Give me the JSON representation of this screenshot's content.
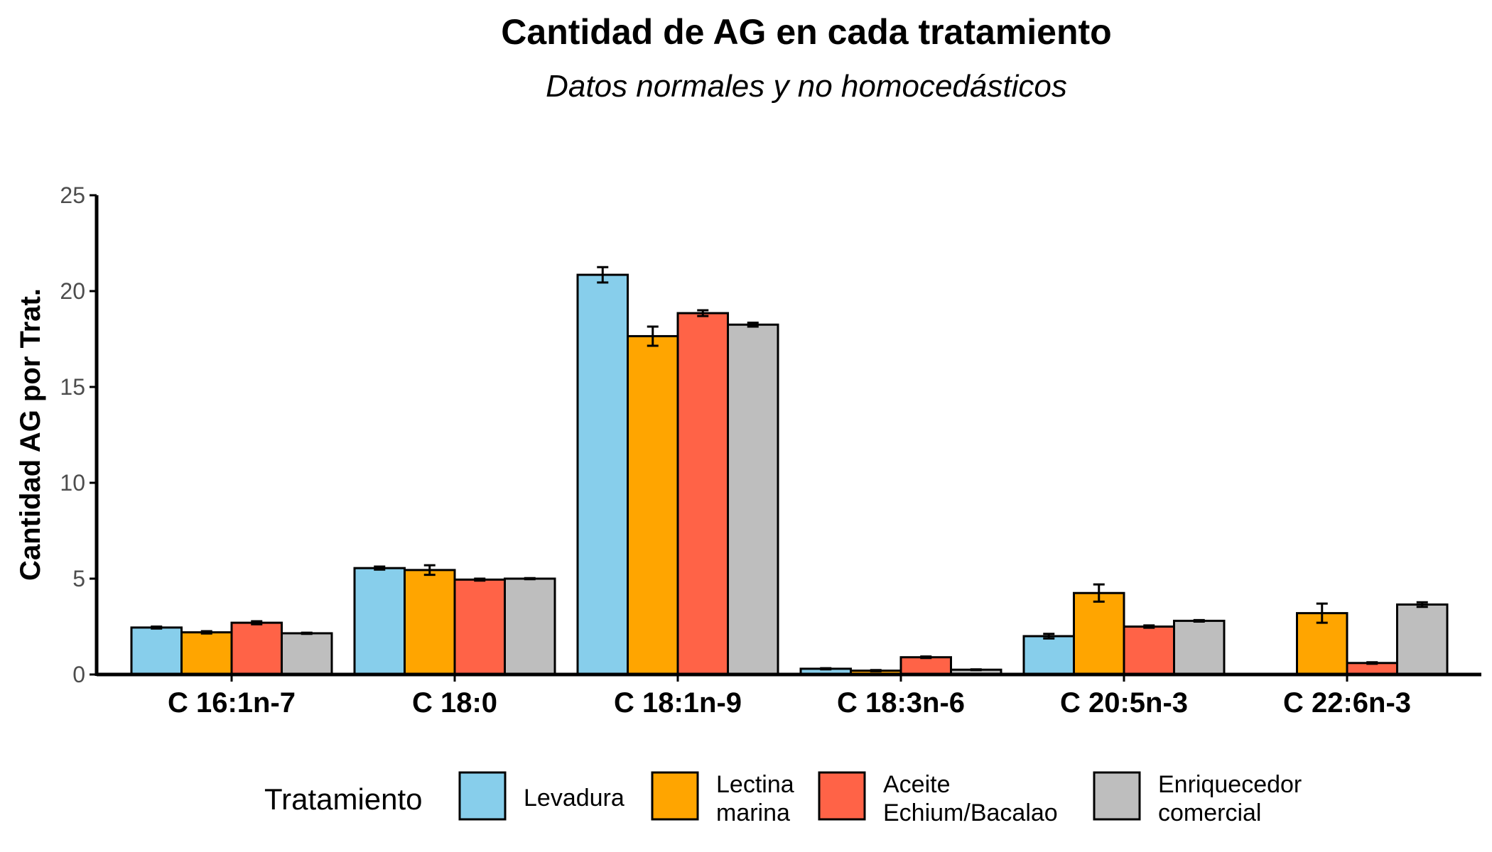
{
  "chart_data": {
    "type": "bar",
    "title": "Cantidad de AG en cada tratamiento",
    "subtitle": "Datos normales y no homocedásticos",
    "xlabel": "",
    "ylabel": "Cantidad AG por Trat.",
    "ylim": [
      0,
      25
    ],
    "yticks": [
      "0",
      "5",
      "10",
      "15",
      "20",
      "25"
    ],
    "grid": false,
    "legend_position": "bottom",
    "legend_title": "Tratamiento",
    "categories": [
      "C 16:1n-7",
      "C 18:0",
      "C 18:1n-9",
      "C 18:3n-6",
      "C 20:5n-3",
      "C 22:6n-3"
    ],
    "series": [
      {
        "name": "Levadura",
        "label_lines": [
          "Levadura"
        ],
        "color": "#87CEEB",
        "values": [
          2.45,
          5.55,
          20.85,
          0.3,
          2.0,
          0
        ],
        "errors": [
          0.05,
          0.08,
          0.4,
          0.03,
          0.12,
          0
        ]
      },
      {
        "name": "Lectina marina",
        "label_lines": [
          "Lectina",
          "marina"
        ],
        "color": "#FFA500",
        "values": [
          2.2,
          5.45,
          17.65,
          0.2,
          4.25,
          3.2
        ],
        "errors": [
          0.06,
          0.25,
          0.5,
          0.03,
          0.45,
          0.5
        ]
      },
      {
        "name": "Aceite Echium/Bacalao",
        "label_lines": [
          "Aceite",
          "Echium/Bacalao"
        ],
        "color": "#FF6347",
        "values": [
          2.7,
          4.95,
          18.85,
          0.9,
          2.5,
          0.6
        ],
        "errors": [
          0.08,
          0.05,
          0.15,
          0.04,
          0.06,
          0.04
        ]
      },
      {
        "name": "Enriquecedor comercial",
        "label_lines": [
          "Enriquecedor",
          "comercial"
        ],
        "color": "#BEBEBE",
        "values": [
          2.15,
          5.0,
          18.25,
          0.25,
          2.8,
          3.65
        ],
        "errors": [
          0.03,
          0.03,
          0.1,
          0.02,
          0.04,
          0.12
        ]
      }
    ]
  }
}
